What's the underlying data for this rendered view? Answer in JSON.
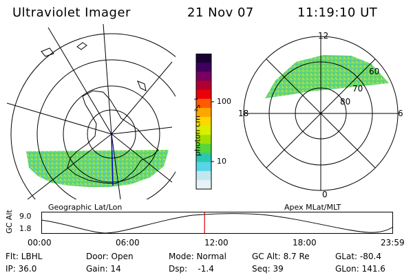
{
  "header": {
    "instrument": "Ultraviolet Imager",
    "date": "21 Nov 07",
    "time": "11:19:10 UT"
  },
  "geographic_panel": {
    "caption": "Geographic Lat/Lon"
  },
  "magnetic_panel": {
    "caption": "Apex MLat/MLT",
    "mlt_labels": {
      "top": "12",
      "left": "18",
      "right": "6",
      "bottom": "0"
    },
    "mlat_labels": [
      "60",
      "70",
      "80"
    ]
  },
  "colorbar": {
    "unit_label": "photon cm⁻²s⁻¹",
    "ticks": [
      "100",
      "10"
    ],
    "colors": [
      "#1a0033",
      "#3d005c",
      "#7a0060",
      "#b00030",
      "#e8000a",
      "#ff5a00",
      "#ffa500",
      "#ffd700",
      "#d8f000",
      "#9fe000",
      "#55d63a",
      "#2bc8b0",
      "#56d6e6",
      "#bfe8f0",
      "#e6f2f5"
    ]
  },
  "timeseries": {
    "ylabel": "GC Alt",
    "ymax": "9.0",
    "ymin": "1.8",
    "x_ticks": [
      "00:00",
      "06:00",
      "12:00",
      "18:00",
      "23:59"
    ],
    "current_time_fraction": 0.465
  },
  "info": {
    "flt_label": "Flt: LBHL",
    "ip_label": "IP: 36.0",
    "door_label": "Door: Open",
    "gain_label": "Gain: 14",
    "mode_label": "Mode: Normal",
    "dsp_label": "Dsp:    -1.4",
    "gcalt_label": "GC Alt: 8.7 Re",
    "seq_label": "Seq: 39",
    "glat_label": "GLat: -80.4",
    "glon_label": "GLon: 141.6"
  }
}
